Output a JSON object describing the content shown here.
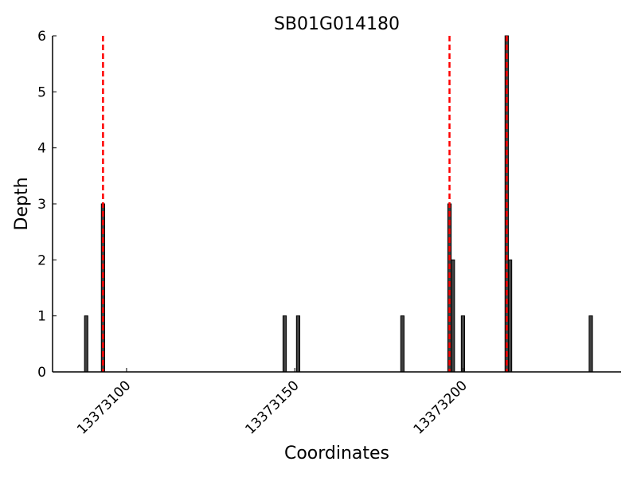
{
  "chart_data": {
    "type": "bar",
    "title": "SB01G014180",
    "xlabel": "Coordinates",
    "ylabel": "Depth",
    "xlim": [
      13373078,
      13373247
    ],
    "ylim": [
      0,
      6
    ],
    "xticks": [
      13373100,
      13373150,
      13373200
    ],
    "xtick_labels": [
      "13373100",
      "13373150",
      "13373200"
    ],
    "yticks": [
      0,
      1,
      2,
      3,
      4,
      5,
      6
    ],
    "ytick_labels": [
      "0",
      "1",
      "2",
      "3",
      "4",
      "5",
      "6"
    ],
    "grid": false,
    "bar_color": "#404040",
    "marker_color": "#ff0000",
    "x": [
      13373088,
      13373093,
      13373147,
      13373151,
      13373182,
      13373196,
      13373197,
      13373200,
      13373213,
      13373214,
      13373238
    ],
    "values": [
      1,
      3,
      1,
      1,
      1,
      3,
      2,
      1,
      6,
      2,
      1
    ],
    "vertical_markers": [
      13373093,
      13373196,
      13373213
    ]
  }
}
